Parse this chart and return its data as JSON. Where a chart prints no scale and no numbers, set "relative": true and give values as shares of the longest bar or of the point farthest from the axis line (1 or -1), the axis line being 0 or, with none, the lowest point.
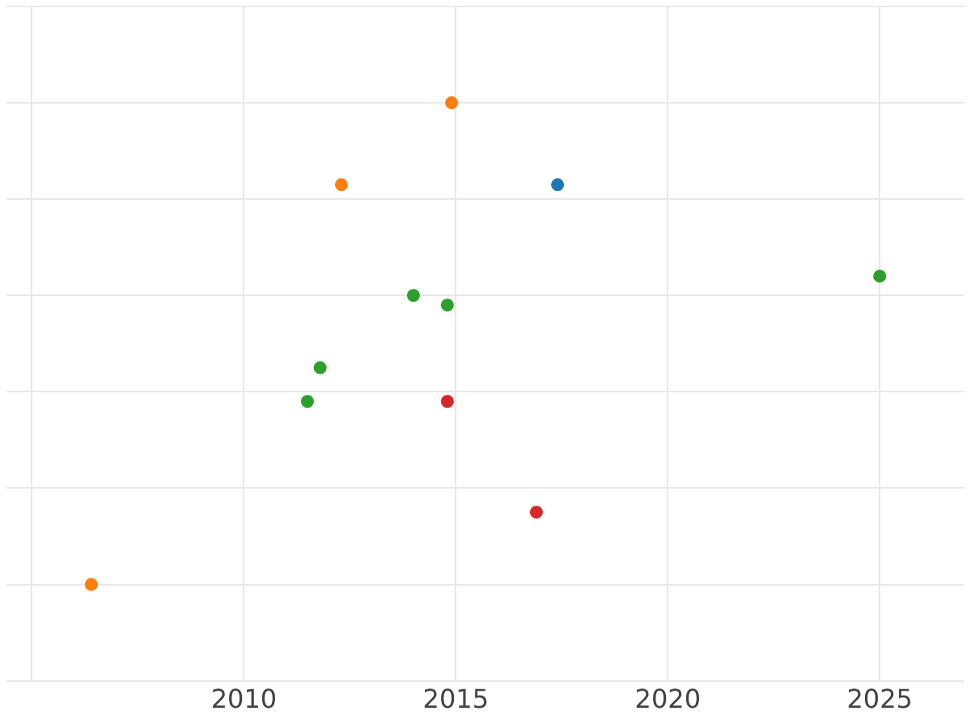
{
  "chart_data": {
    "type": "scatter",
    "relative": true,
    "grid": true,
    "legend": false,
    "marker": "circle",
    "tick_labels": "x",
    "xlim": [
      2004.4,
      2027
    ],
    "xticks": [
      {
        "value": 2005,
        "label": null
      },
      2010,
      2015,
      2020,
      2025
    ],
    "x": [
      2014.9,
      2012.3,
      2006.4,
      2017.4,
      2025.0,
      2014.0,
      2014.8,
      2011.8,
      2011.5,
      2014.8,
      2016.9
    ],
    "values": [
      1,
      0.83,
      0,
      0.83,
      0.64,
      0.6,
      0.58,
      0.45,
      0.38,
      0.38,
      0.15
    ],
    "colors": [
      "#ff7f0e",
      "#ff7f0e",
      "#ff7f0e",
      "#1f77b4",
      "#2ca02c",
      "#2ca02c",
      "#2ca02c",
      "#2ca02c",
      "#2ca02c",
      "#d62728",
      "#d62728"
    ]
  }
}
